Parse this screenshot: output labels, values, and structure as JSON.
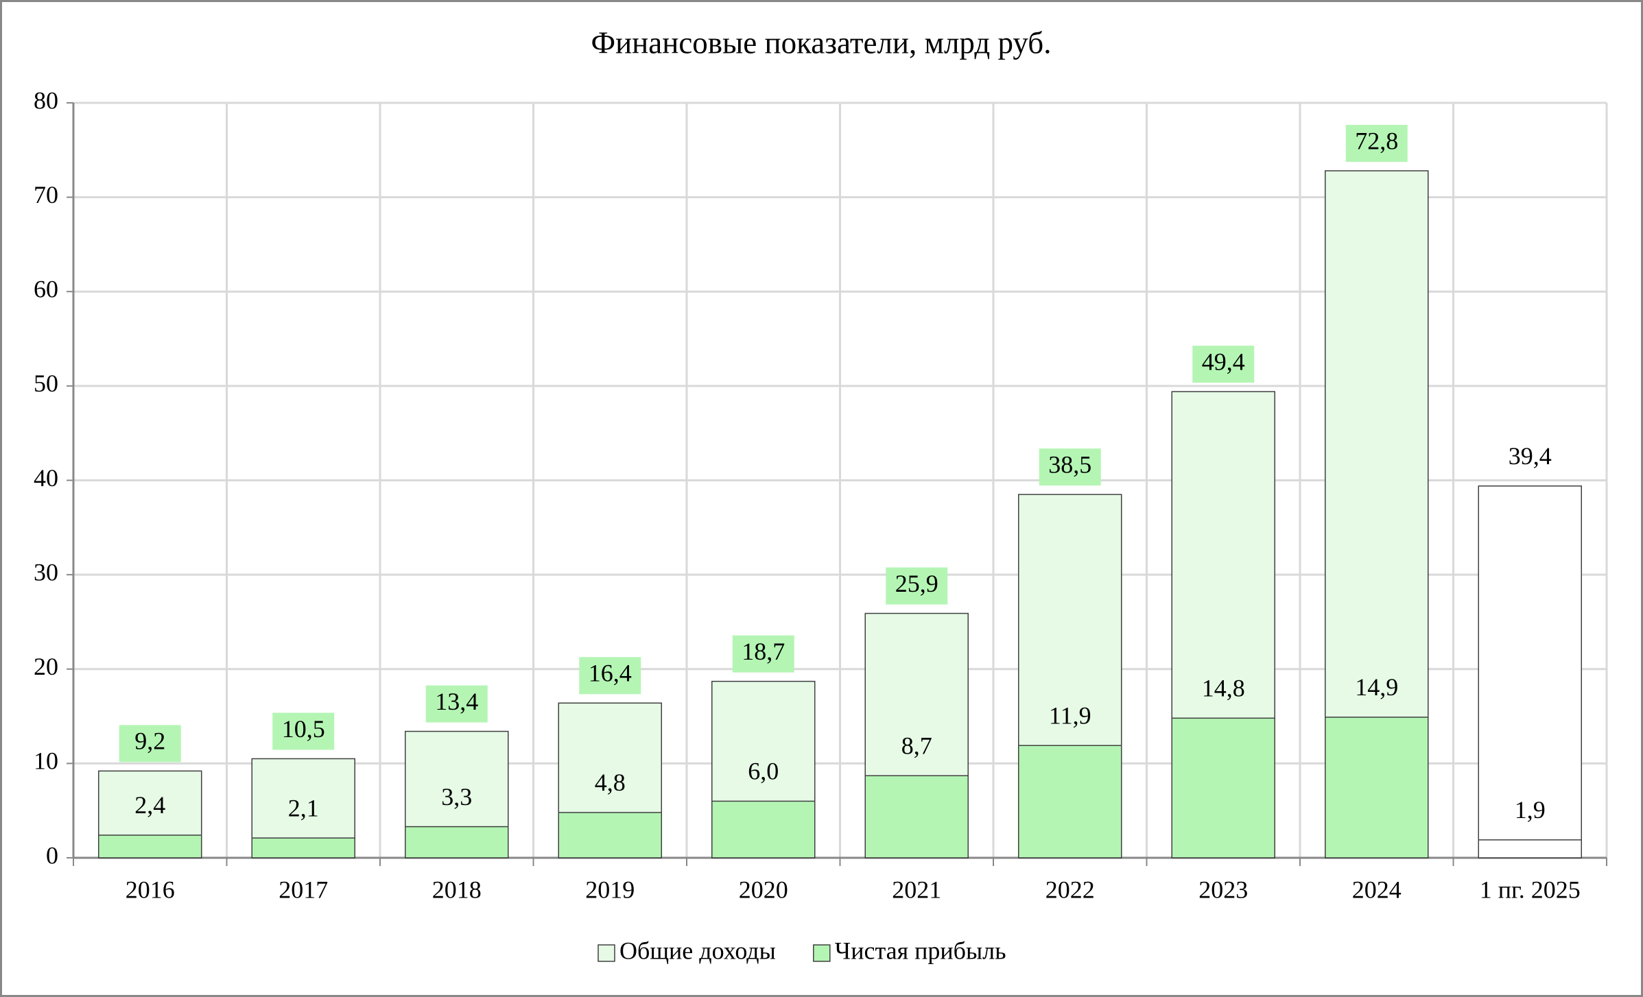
{
  "chart_data": {
    "type": "bar",
    "title": "Финансовые показатели, млрд руб.",
    "categories": [
      "2016",
      "2017",
      "2018",
      "2019",
      "2020",
      "2021",
      "2022",
      "2023",
      "2024",
      "1 пг. 2025"
    ],
    "series": [
      {
        "name": "Общие доходы",
        "color": "#e6fae6",
        "colors": [
          "#e6fae6",
          "#e6fae6",
          "#e6fae6",
          "#e6fae6",
          "#e6fae6",
          "#e6fae6",
          "#e6fae6",
          "#e6fae6",
          "#e6fae6",
          "#ffffff"
        ],
        "label_colors": [
          "#b4f5b4",
          "#b4f5b4",
          "#b4f5b4",
          "#b4f5b4",
          "#b4f5b4",
          "#b4f5b4",
          "#b4f5b4",
          "#b4f5b4",
          "#b4f5b4",
          "#ffffff"
        ],
        "values": [
          9.2,
          10.5,
          13.4,
          16.4,
          18.7,
          25.9,
          38.5,
          49.4,
          72.8,
          39.4
        ],
        "value_labels": [
          "9,2",
          "10,5",
          "13,4",
          "16,4",
          "18,7",
          "25,9",
          "38,5",
          "49,4",
          "72,8",
          "39,4"
        ]
      },
      {
        "name": "Чистая прибыль",
        "color": "#b4f5b4",
        "colors": [
          "#b4f5b4",
          "#b4f5b4",
          "#b4f5b4",
          "#b4f5b4",
          "#b4f5b4",
          "#b4f5b4",
          "#b4f5b4",
          "#b4f5b4",
          "#b4f5b4",
          "#ffffff"
        ],
        "values": [
          2.4,
          2.1,
          3.3,
          4.8,
          6.0,
          8.7,
          11.9,
          14.8,
          14.9,
          1.9
        ],
        "value_labels": [
          "2,4",
          "2,1",
          "3,3",
          "4,8",
          "6,0",
          "8,7",
          "11,9",
          "14,8",
          "14,9",
          "1,9"
        ]
      }
    ],
    "ylim": [
      0,
      80
    ],
    "yticks": [
      0,
      10,
      20,
      30,
      40,
      50,
      60,
      70,
      80
    ],
    "grid": true,
    "legend": "bottom"
  }
}
